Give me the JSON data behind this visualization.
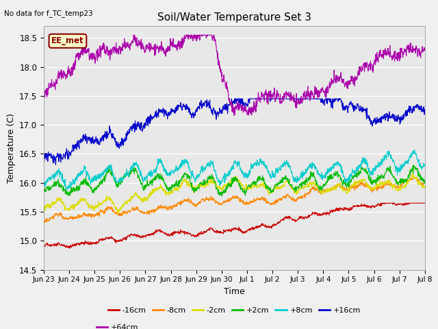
{
  "title": "Soil/Water Temperature Set 3",
  "xlabel": "Time",
  "ylabel": "Temperature (C)",
  "no_data_label": "No data for f_TC_temp23",
  "annotation_label": "EE_met",
  "ylim": [
    14.5,
    18.7
  ],
  "series_order": [
    "-16cm",
    "-8cm",
    "-2cm",
    "+2cm",
    "+8cm",
    "+16cm",
    "+64cm"
  ],
  "series": {
    "-16cm": {
      "color": "#cc0000",
      "lw": 0.8
    },
    "-8cm": {
      "color": "#ff8800",
      "lw": 0.8
    },
    "-2cm": {
      "color": "#dddd00",
      "lw": 0.8
    },
    "+2cm": {
      "color": "#00bb00",
      "lw": 0.8
    },
    "+8cm": {
      "color": "#00cccc",
      "lw": 0.8
    },
    "+16cm": {
      "color": "#0000cc",
      "lw": 0.8
    },
    "+64cm": {
      "color": "#aa00aa",
      "lw": 0.8
    }
  },
  "xtick_labels": [
    "Jun 23",
    "Jun 24",
    "Jun 25",
    "Jun 26",
    "Jun 27",
    "Jun 28",
    "Jun 29",
    "Jun 30",
    "Jul 1",
    "Jul 2",
    "Jul 3",
    "Jul 4",
    "Jul 5",
    "Jul 6",
    "Jul 7",
    "Jul 8"
  ],
  "yticks": [
    14.5,
    15.0,
    15.5,
    16.0,
    16.5,
    17.0,
    17.5,
    18.0,
    18.5
  ],
  "fig_bg": "#f0f0f0",
  "plot_bg": "#e8e8e8",
  "grid_color": "#ffffff",
  "n_points": 1440,
  "n_days": 15,
  "figsize": [
    6.4,
    4.8
  ],
  "dpi": 100
}
